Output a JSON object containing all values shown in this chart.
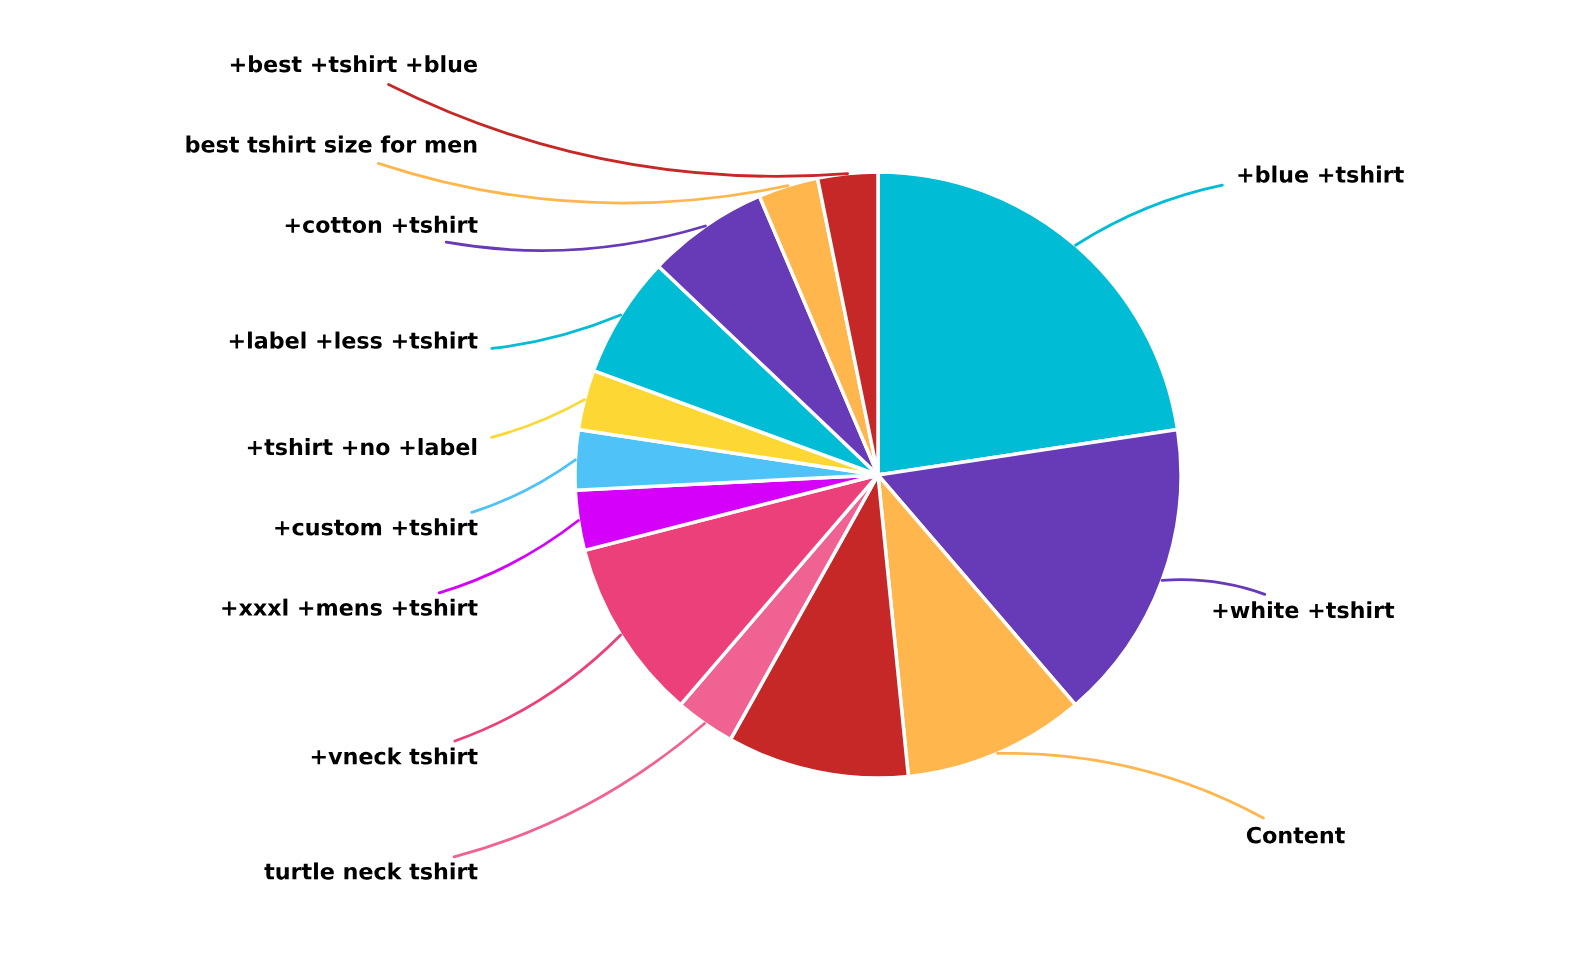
{
  "chart_data": {
    "type": "pie",
    "categories": [
      "+blue +tshirt",
      "+white +tshirt",
      "Content",
      null,
      "turtle neck tshirt",
      "+vneck tshirt",
      "+xxxl +mens +tshirt",
      "+custom +tshirt",
      "+tshirt +no +label",
      "+label +less +tshirt",
      "+cotton +tshirt",
      "best tshirt size for men",
      "+best +tshirt +blue"
    ],
    "values": [
      22.6,
      16.1,
      9.7,
      9.7,
      3.2,
      9.7,
      3.2,
      3.2,
      3.2,
      6.5,
      6.5,
      3.2,
      3.2
    ],
    "colors": [
      "#00bcd4",
      "#673ab7",
      "#ffb74d",
      "#c62828",
      "#f06292",
      "#ec407a",
      "#d500f9",
      "#4fc3f7",
      "#fdd835",
      "#00bcd4",
      "#673ab7",
      "#ffb74d",
      "#c62828"
    ],
    "legend": false
  }
}
